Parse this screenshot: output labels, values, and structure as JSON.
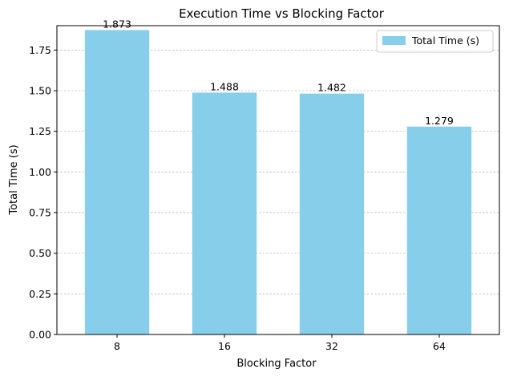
{
  "chart_data": {
    "type": "bar",
    "title": "Execution Time vs Blocking Factor",
    "xlabel": "Blocking Factor",
    "ylabel": "Total Time (s)",
    "categories": [
      "8",
      "16",
      "32",
      "64"
    ],
    "series": [
      {
        "name": "Total Time (s)",
        "values": [
          1.873,
          1.488,
          1.482,
          1.279
        ],
        "value_labels": [
          "1.873",
          "1.488",
          "1.482",
          "1.279"
        ],
        "color": "#87ceeb"
      }
    ],
    "ylim": [
      0,
      1.9
    ],
    "yticks": [
      0.0,
      0.25,
      0.5,
      0.75,
      1.0,
      1.25,
      1.5,
      1.75
    ],
    "ytick_labels": [
      "0.00",
      "0.25",
      "0.50",
      "0.75",
      "1.00",
      "1.25",
      "1.50",
      "1.75"
    ],
    "grid": "y-dashed",
    "legend_position": "top-right"
  }
}
